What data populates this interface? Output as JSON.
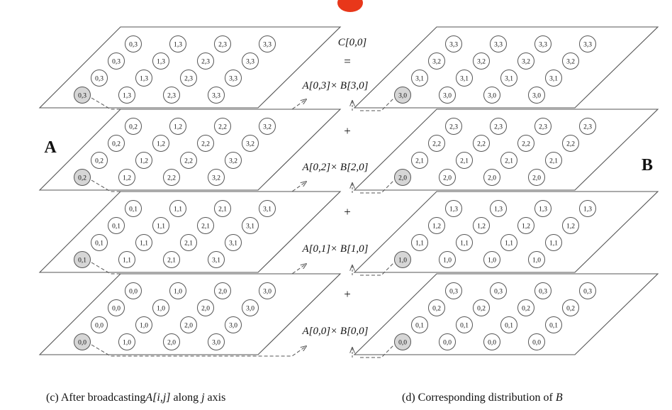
{
  "result_label": "C[0,0]",
  "equals_sign": "=",
  "plus_sign": "+",
  "products": [
    "A[0,3]× B[3,0]",
    "A[0,2]× B[2,0]",
    "A[0,1]× B[1,0]",
    "A[0,0]× B[0,0]"
  ],
  "left_label": "A",
  "right_label": "B",
  "caption_left": {
    "prefix": "(c)  After broadcasting",
    "term": "A[i,j]",
    "middle": " along ",
    "axis": "j",
    "suffix": " axis"
  },
  "caption_right": {
    "prefix": "(d)  Corresponding distribution of ",
    "term": "B"
  },
  "planes_a": [
    [
      [
        "0,3",
        "1,3",
        "2,3",
        "3,3"
      ],
      [
        "0,3",
        "1,3",
        "2,3",
        "3,3"
      ],
      [
        "0,3",
        "1,3",
        "2,3",
        "3,3"
      ],
      [
        "0,3",
        "1,3",
        "2,3",
        "3,3"
      ]
    ],
    [
      [
        "0,2",
        "1,2",
        "2,2",
        "3,2"
      ],
      [
        "0,2",
        "1,2",
        "2,2",
        "3,2"
      ],
      [
        "0,2",
        "1,2",
        "2,2",
        "3,2"
      ],
      [
        "0,2",
        "1,2",
        "2,2",
        "3,2"
      ]
    ],
    [
      [
        "0,1",
        "1,1",
        "2,1",
        "3,1"
      ],
      [
        "0,1",
        "1,1",
        "2,1",
        "3,1"
      ],
      [
        "0,1",
        "1,1",
        "2,1",
        "3,1"
      ],
      [
        "0,1",
        "1,1",
        "2,1",
        "3,1"
      ]
    ],
    [
      [
        "0,0",
        "1,0",
        "2,0",
        "3,0"
      ],
      [
        "0,0",
        "1,0",
        "2,0",
        "3,0"
      ],
      [
        "0,0",
        "1,0",
        "2,0",
        "3,0"
      ],
      [
        "0,0",
        "1,0",
        "2,0",
        "3,0"
      ]
    ]
  ],
  "planes_b": [
    [
      [
        "3,3",
        "3,3",
        "3,3",
        "3,3"
      ],
      [
        "3,2",
        "3,2",
        "3,2",
        "3,2"
      ],
      [
        "3,1",
        "3,1",
        "3,1",
        "3,1"
      ],
      [
        "3,0",
        "3,0",
        "3,0",
        "3,0"
      ]
    ],
    [
      [
        "2,3",
        "2,3",
        "2,3",
        "2,3"
      ],
      [
        "2,2",
        "2,2",
        "2,2",
        "2,2"
      ],
      [
        "2,1",
        "2,1",
        "2,1",
        "2,1"
      ],
      [
        "2,0",
        "2,0",
        "2,0",
        "2,0"
      ]
    ],
    [
      [
        "1,3",
        "1,3",
        "1,3",
        "1,3"
      ],
      [
        "1,2",
        "1,2",
        "1,2",
        "1,2"
      ],
      [
        "1,1",
        "1,1",
        "1,1",
        "1,1"
      ],
      [
        "1,0",
        "1,0",
        "1,0",
        "1,0"
      ]
    ],
    [
      [
        "0,3",
        "0,3",
        "0,3",
        "0,3"
      ],
      [
        "0,2",
        "0,2",
        "0,2",
        "0,2"
      ],
      [
        "0,1",
        "0,1",
        "0,1",
        "0,1"
      ],
      [
        "0,0",
        "0,0",
        "0,0",
        "0,0"
      ]
    ]
  ],
  "colors": {
    "line": "#555555",
    "highlight": "#d6d6d6",
    "accent": "#e8371a"
  }
}
